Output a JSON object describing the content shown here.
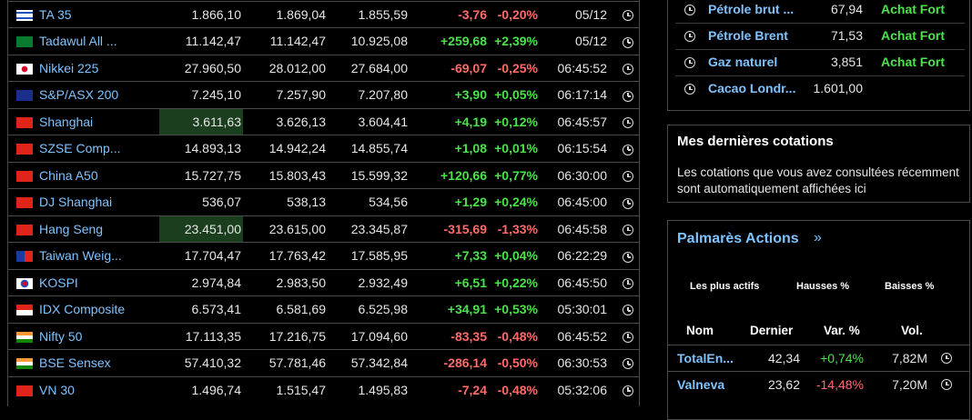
{
  "indices": [
    {
      "name": "TA 35",
      "flag": "il",
      "last": "1.866,10",
      "high": "1.869,04",
      "low": "1.855,59",
      "chg": "-3,76",
      "pct": "-0,20%",
      "time": "05/12",
      "dir": "neg",
      "hl": false
    },
    {
      "name": "Tadawul All ...",
      "flag": "sa",
      "last": "11.142,47",
      "high": "11.142,47",
      "low": "10.925,08",
      "chg": "+259,68",
      "pct": "+2,39%",
      "time": "05/12",
      "dir": "pos",
      "hl": false
    },
    {
      "name": "Nikkei 225",
      "flag": "jp",
      "last": "27.960,50",
      "high": "28.012,00",
      "low": "27.684,00",
      "chg": "-69,07",
      "pct": "-0,25%",
      "time": "06:45:52",
      "dir": "neg",
      "hl": false
    },
    {
      "name": "S&P/ASX 200",
      "flag": "au",
      "last": "7.245,10",
      "high": "7.257,90",
      "low": "7.207,80",
      "chg": "+3,90",
      "pct": "+0,05%",
      "time": "06:17:14",
      "dir": "pos",
      "hl": false
    },
    {
      "name": "Shanghai",
      "flag": "cn",
      "last": "3.611,63",
      "high": "3.626,13",
      "low": "3.604,41",
      "chg": "+4,19",
      "pct": "+0,12%",
      "time": "06:45:57",
      "dir": "pos",
      "hl": true
    },
    {
      "name": "SZSE Comp...",
      "flag": "cn",
      "last": "14.893,13",
      "high": "14.942,24",
      "low": "14.855,74",
      "chg": "+1,08",
      "pct": "+0,01%",
      "time": "06:15:54",
      "dir": "pos",
      "hl": false
    },
    {
      "name": "China A50",
      "flag": "cn",
      "last": "15.727,75",
      "high": "15.803,43",
      "low": "15.599,32",
      "chg": "+120,66",
      "pct": "+0,77%",
      "time": "06:30:00",
      "dir": "pos",
      "hl": false
    },
    {
      "name": "DJ Shanghai",
      "flag": "cn",
      "last": "536,07",
      "high": "538,13",
      "low": "534,56",
      "chg": "+1,29",
      "pct": "+0,24%",
      "time": "06:45:00",
      "dir": "pos",
      "hl": false
    },
    {
      "name": "Hang Seng",
      "flag": "hk",
      "last": "23.451,00",
      "high": "23.615,00",
      "low": "23.345,87",
      "chg": "-315,69",
      "pct": "-1,33%",
      "time": "06:45:58",
      "dir": "neg",
      "hl": true
    },
    {
      "name": "Taiwan Weig...",
      "flag": "tw",
      "last": "17.704,47",
      "high": "17.763,42",
      "low": "17.585,95",
      "chg": "+7,33",
      "pct": "+0,04%",
      "time": "06:22:29",
      "dir": "pos",
      "hl": false
    },
    {
      "name": "KOSPI",
      "flag": "kr",
      "last": "2.974,84",
      "high": "2.983,50",
      "low": "2.932,49",
      "chg": "+6,51",
      "pct": "+0,22%",
      "time": "06:45:50",
      "dir": "pos",
      "hl": false
    },
    {
      "name": "IDX Composite",
      "flag": "id",
      "last": "6.573,41",
      "high": "6.581,69",
      "low": "6.525,98",
      "chg": "+34,91",
      "pct": "+0,53%",
      "time": "05:30:01",
      "dir": "pos",
      "hl": false
    },
    {
      "name": "Nifty 50",
      "flag": "in",
      "last": "17.113,35",
      "high": "17.216,75",
      "low": "17.094,60",
      "chg": "-83,35",
      "pct": "-0,48%",
      "time": "06:45:52",
      "dir": "neg",
      "hl": false
    },
    {
      "name": "BSE Sensex",
      "flag": "in",
      "last": "57.410,32",
      "high": "57.781,46",
      "low": "57.342,84",
      "chg": "-286,14",
      "pct": "-0,50%",
      "time": "06:30:53",
      "dir": "neg",
      "hl": false
    },
    {
      "name": "VN 30",
      "flag": "vn",
      "last": "1.496,74",
      "high": "1.515,47",
      "low": "1.495,83",
      "chg": "-7,24",
      "pct": "-0,48%",
      "time": "05:32:06",
      "dir": "neg",
      "hl": false
    }
  ],
  "commodities": [
    {
      "name": "Pétrole brut ...",
      "value": "67,94",
      "signal": "Achat Fort"
    },
    {
      "name": "Pétrole Brent",
      "value": "71,53",
      "signal": "Achat Fort"
    },
    {
      "name": "Gaz naturel",
      "value": "3,851",
      "signal": "Achat Fort"
    },
    {
      "name": "Cacao Londr...",
      "value": "1.601,00",
      "signal": ""
    }
  ],
  "recent": {
    "title": "Mes dernières cotations",
    "description": "Les cotations que vous avez consultées récemment sont automatiquement affichées ici"
  },
  "palmares": {
    "title": "Palmarès Actions",
    "arrow": "»",
    "tabs": [
      "Les plus actifs",
      "Hausses %",
      "Baisses %"
    ],
    "headers": {
      "name": "Nom",
      "last": "Dernier",
      "var": "Var. %",
      "vol": "Vol."
    },
    "rows": [
      {
        "name": "TotalEn...",
        "last": "42,34",
        "var": "+0,74%",
        "vol": "7,82M",
        "dir": "pos"
      },
      {
        "name": "Valneva",
        "last": "23,62",
        "var": "-14,48%",
        "vol": "7,20M",
        "dir": "neg"
      }
    ]
  },
  "colors": {
    "link": "#7ec3ff",
    "positive": "#4be24b",
    "negative": "#ff6a6a",
    "highlight": "#1b3e1e",
    "border": "#4a4a4a"
  }
}
